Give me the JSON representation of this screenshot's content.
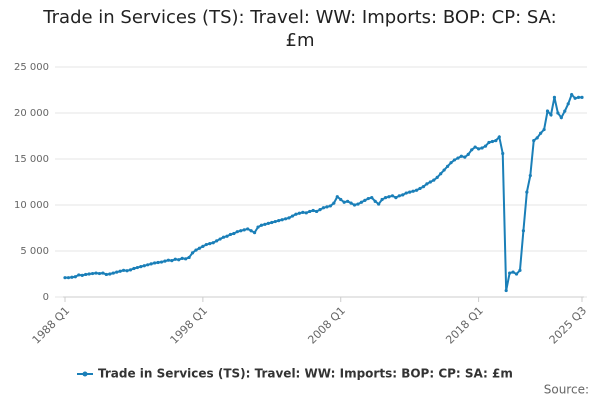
{
  "chart_data": {
    "type": "line",
    "title": "Trade in Services (TS): Travel: WW: Imports: BOP: CP: SA: £m",
    "source": "Source:",
    "categories": [
      "1988 Q1",
      null,
      null,
      null,
      null,
      null,
      null,
      null,
      null,
      null,
      null,
      null,
      null,
      null,
      null,
      null,
      null,
      null,
      null,
      null,
      null,
      null,
      null,
      null,
      null,
      null,
      null,
      null,
      null,
      null,
      null,
      null,
      null,
      null,
      null,
      null,
      null,
      null,
      null,
      null,
      "1998 Q1",
      null,
      null,
      null,
      null,
      null,
      null,
      null,
      null,
      null,
      null,
      null,
      null,
      null,
      null,
      null,
      null,
      null,
      null,
      null,
      null,
      null,
      null,
      null,
      null,
      null,
      null,
      null,
      null,
      null,
      null,
      null,
      null,
      null,
      null,
      null,
      null,
      null,
      null,
      null,
      "2008 Q1",
      null,
      null,
      null,
      null,
      null,
      null,
      null,
      null,
      null,
      null,
      null,
      null,
      null,
      null,
      null,
      null,
      null,
      null,
      null,
      null,
      null,
      null,
      null,
      null,
      null,
      null,
      null,
      null,
      null,
      null,
      null,
      null,
      null,
      null,
      null,
      null,
      null,
      null,
      null,
      "2018 Q1",
      null,
      null,
      null,
      null,
      null,
      null,
      null,
      null,
      null,
      null,
      null,
      null,
      null,
      null,
      null,
      null,
      null,
      null,
      null,
      null,
      null,
      null,
      null,
      null,
      null,
      null,
      null,
      null,
      null,
      "2025 Q3"
    ],
    "series": [
      {
        "name": "Trade in Services (TS): Travel: WW: Imports: BOP: CP: SA: £m",
        "color": "#1a7fb8",
        "values": [
          2100,
          2100,
          2150,
          2200,
          2400,
          2350,
          2450,
          2500,
          2550,
          2600,
          2550,
          2600,
          2450,
          2500,
          2600,
          2700,
          2800,
          2900,
          2850,
          2950,
          3100,
          3200,
          3300,
          3400,
          3500,
          3600,
          3700,
          3750,
          3800,
          3900,
          4000,
          3950,
          4100,
          4050,
          4200,
          4150,
          4300,
          4800,
          5100,
          5300,
          5500,
          5700,
          5800,
          5900,
          6100,
          6300,
          6500,
          6600,
          6800,
          6900,
          7100,
          7200,
          7300,
          7400,
          7200,
          7000,
          7600,
          7800,
          7900,
          8000,
          8100,
          8200,
          8300,
          8400,
          8500,
          8600,
          8800,
          9000,
          9100,
          9200,
          9150,
          9300,
          9400,
          9300,
          9500,
          9700,
          9800,
          9900,
          10200,
          10900,
          10600,
          10300,
          10400,
          10200,
          10000,
          10100,
          10300,
          10500,
          10700,
          10800,
          10400,
          10100,
          10600,
          10800,
          10900,
          11000,
          10800,
          11000,
          11100,
          11300,
          11400,
          11500,
          11600,
          11800,
          12000,
          12300,
          12500,
          12700,
          13000,
          13400,
          13800,
          14200,
          14600,
          14900,
          15100,
          15300,
          15200,
          15500,
          16000,
          16300,
          16100,
          16200,
          16400,
          16800,
          16900,
          17000,
          17400,
          15600,
          700,
          2600,
          2700,
          2500,
          2900,
          7200,
          11400,
          13200,
          17000,
          17300,
          17800,
          18200,
          20200,
          19800,
          21700,
          20000,
          19500,
          20200,
          21000,
          22000,
          21600,
          21700,
          21700
        ]
      }
    ],
    "ylim": [
      0,
      25000
    ],
    "yticks": [
      0,
      {
        "value": 5000,
        "label": "5 000"
      },
      {
        "value": 10000,
        "label": "10 000"
      },
      {
        "value": 15000,
        "label": "15 000"
      },
      {
        "value": 20000,
        "label": "20 000"
      },
      {
        "value": 25000,
        "label": "25 000"
      }
    ],
    "grid": true
  }
}
